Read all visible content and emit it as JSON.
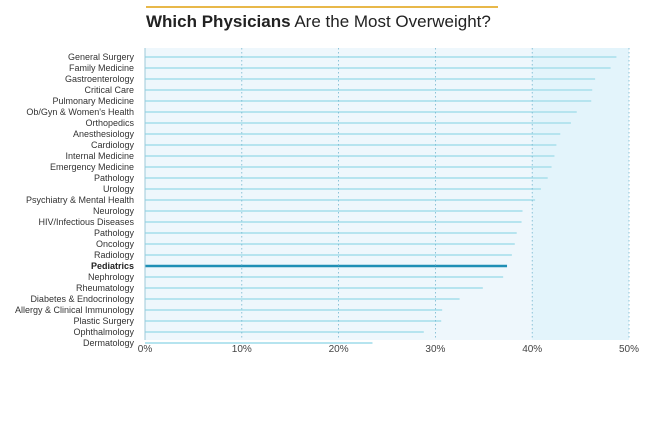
{
  "title": {
    "bold": "Which Physicians",
    "rest": " Are the Most Overweight?"
  },
  "colors": {
    "accent_rule": "#e8b84a",
    "plot_bg": "#eef7fc",
    "shade_bg": "#e3f4fb",
    "bar": "#b6e4ef",
    "bar_highlight": "#1f8fb5",
    "grid": "#74b6cf"
  },
  "chart_data": {
    "type": "bar",
    "orientation": "horizontal",
    "title": "Which Physicians Are the Most Overweight?",
    "categories": [
      "General Surgery",
      "Family Medicine",
      "Gastroenterology",
      "Critical Care",
      "Pulmonary Medicine",
      "Ob/Gyn & Women's Health",
      "Orthopedics",
      "Anesthesiology",
      "Cardiology",
      "Internal Medicine",
      "Emergency Medicine",
      "Pathology",
      "Urology",
      "Psychiatry & Mental Health",
      "Neurology",
      "HIV/Infectious Diseases",
      "Pathology",
      "Oncology",
      "Radiology",
      "Pediatrics",
      "Nephrology",
      "Rheumatology",
      "Diabetes & Endocrinology",
      "Allergy & Clinical Immunology",
      "Plastic Surgery",
      "Ophthalmology",
      "Dermatology"
    ],
    "values": [
      48.7,
      48.1,
      46.5,
      46.2,
      46.1,
      44.6,
      44.0,
      42.9,
      42.5,
      42.3,
      42.0,
      41.6,
      40.9,
      40.3,
      39.0,
      38.9,
      38.4,
      38.2,
      37.9,
      37.4,
      37.0,
      34.9,
      32.5,
      30.7,
      30.6,
      28.8,
      23.5
    ],
    "highlight": "Pediatrics",
    "xlim": [
      0,
      50
    ],
    "xticks": [
      "0%",
      "10%",
      "20%",
      "30%",
      "40%",
      "50%"
    ],
    "grid": true,
    "shaded_region_from": 40
  }
}
